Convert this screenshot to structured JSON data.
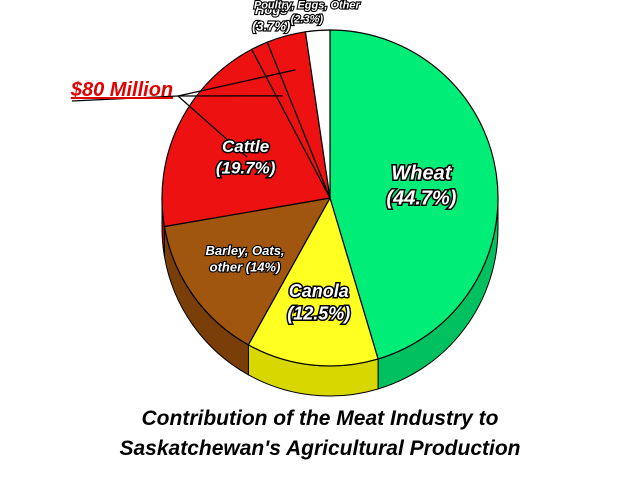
{
  "chart_data": {
    "type": "pie",
    "title": "Contribution of the Meat Industry to Saskatchewan's Agricultural Production",
    "title_lines": [
      "Contribution of the Meat Industry to",
      "Saskatchewan's Agricultural Production"
    ],
    "slices": [
      {
        "name": "Wheat",
        "value": 44.7,
        "label": [
          "Wheat",
          "(44.7%)"
        ],
        "color": "#00ee77",
        "side": "#00c060"
      },
      {
        "name": "Canola",
        "value": 12.5,
        "label": [
          "Canola",
          "(12.5%)"
        ],
        "color": "#ffff22",
        "side": "#d8d800"
      },
      {
        "name": "Barley, Oats, other",
        "value": 14,
        "label": [
          "Barley, Oats,",
          "other (14%)"
        ],
        "color": "#a0560f",
        "side": "#7a3e08"
      },
      {
        "name": "Cattle",
        "value": 19.7,
        "label": [
          "Cattle",
          "(19.7%)"
        ],
        "color": "#ee1111",
        "side": "#b00000"
      },
      {
        "name": "$80 Million",
        "value": 1.6,
        "label": [],
        "color": "#ee1111",
        "side": "#b00000"
      },
      {
        "name": "Hogs",
        "value": 3.7,
        "label": [
          "Hogs",
          "(3.7%)"
        ],
        "color": "#ee1111",
        "side": "#b00000"
      },
      {
        "name": "Poultry, Eggs, Other",
        "value": 2.3,
        "label": [
          "Poultry, Eggs, Other",
          "(2.3%)"
        ],
        "color": "#ffffff",
        "side": "#dddddd"
      }
    ],
    "callout": "$80 Million"
  }
}
